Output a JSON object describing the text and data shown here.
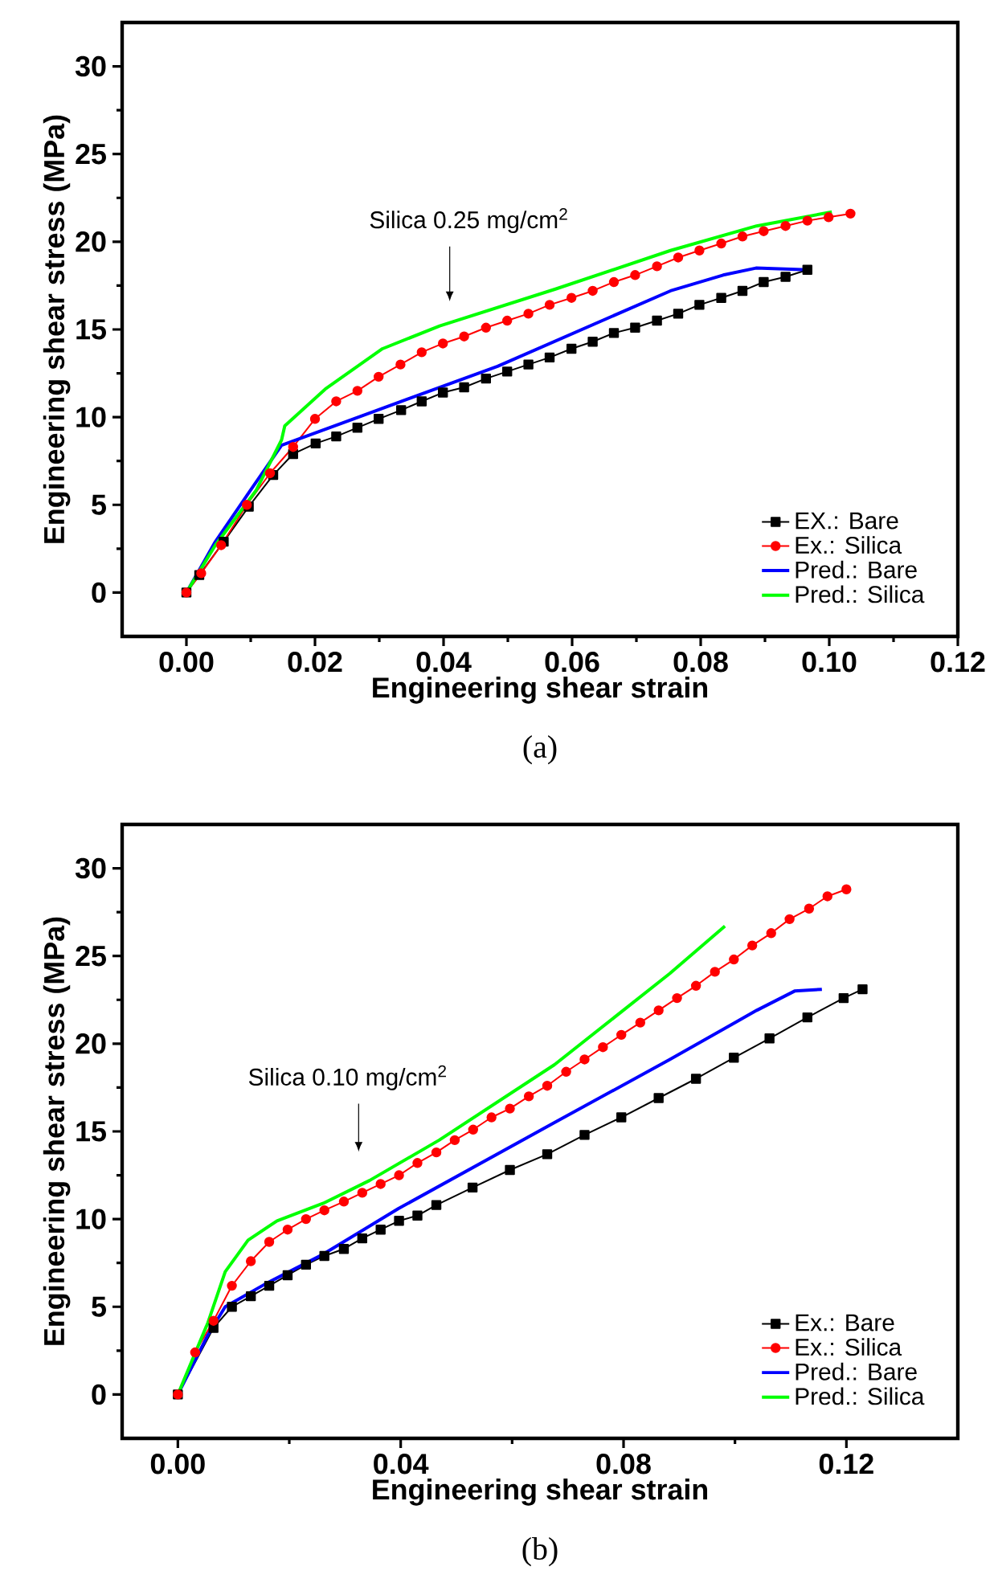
{
  "chart_data": [
    {
      "type": "line",
      "xlabel": "Engineering shear strain",
      "ylabel": "Engineering shear stress (MPa)",
      "xlim": [
        -0.01,
        0.12
      ],
      "ylim": [
        -2.5,
        32.5
      ],
      "xticks": [
        {
          "value": 0,
          "label": "0.00"
        },
        {
          "value": 0.02,
          "label": "0.02"
        },
        {
          "value": 0.04,
          "label": "0.04"
        },
        {
          "value": 0.06,
          "label": "0.06"
        },
        {
          "value": 0.08,
          "label": "0.08"
        },
        {
          "value": 0.1,
          "label": "0.10"
        },
        {
          "value": 0.12,
          "label": "0.12"
        }
      ],
      "yticks": [
        0,
        5,
        10,
        15,
        20,
        25,
        30
      ],
      "legend": "bottom right",
      "annotations": [
        "Silica 0.25 mg/cm$^{2}$",
        "(a)"
      ],
      "series": [
        {
          "name": "EX.: Bare",
          "color": "#000000",
          "marker": "square",
          "x": [
            0,
            0.002,
            0.0058,
            0.0097,
            0.0135,
            0.0166,
            0.0201,
            0.0233,
            0.0266,
            0.0299,
            0.0334,
            0.0366,
            0.0399,
            0.0432,
            0.0466,
            0.0499,
            0.0532,
            0.0565,
            0.0599,
            0.0632,
            0.0665,
            0.0698,
            0.0732,
            0.0765,
            0.0798,
            0.0832,
            0.0865,
            0.0898,
            0.0932,
            0.0966
          ],
          "values": [
            0,
            1.0,
            2.9,
            4.9,
            6.7,
            7.9,
            8.5,
            8.9,
            9.4,
            9.9,
            10.4,
            10.9,
            11.4,
            11.7,
            12.2,
            12.6,
            13.0,
            13.4,
            13.9,
            14.3,
            14.8,
            15.1,
            15.5,
            15.9,
            16.4,
            16.8,
            17.2,
            17.7,
            18.0,
            18.4
          ]
        },
        {
          "name": "Ex.: Silica",
          "color": "#ff0000",
          "marker": "circle",
          "x": [
            0,
            0.0023,
            0.0054,
            0.0094,
            0.013,
            0.0166,
            0.02,
            0.0233,
            0.0266,
            0.0299,
            0.0333,
            0.0366,
            0.0399,
            0.0432,
            0.0466,
            0.0499,
            0.0532,
            0.0565,
            0.0599,
            0.0632,
            0.0665,
            0.0698,
            0.0732,
            0.0765,
            0.0798,
            0.0832,
            0.0865,
            0.0898,
            0.0932,
            0.0966,
            0.0999,
            0.1033
          ],
          "values": [
            0,
            1.1,
            2.7,
            5.0,
            6.8,
            8.3,
            9.9,
            10.9,
            11.5,
            12.3,
            13.0,
            13.7,
            14.2,
            14.6,
            15.1,
            15.5,
            15.9,
            16.4,
            16.8,
            17.2,
            17.7,
            18.1,
            18.6,
            19.1,
            19.5,
            19.9,
            20.3,
            20.6,
            20.9,
            21.2,
            21.4,
            21.6
          ]
        },
        {
          "name": "Pred.: Bare",
          "color": "#0000ff",
          "marker": "none",
          "x": [
            0,
            0.0045,
            0.0099,
            0.0148,
            0.0484,
            0.0753,
            0.0835,
            0.0886,
            0.0966
          ],
          "values": [
            0,
            2.9,
            5.8,
            8.4,
            12.9,
            17.2,
            18.1,
            18.5,
            18.4
          ]
        },
        {
          "name": "Pred.: Silica",
          "color": "#00ff00",
          "marker": "none",
          "x": [
            0,
            0.0045,
            0.0108,
            0.0148,
            0.0153,
            0.0216,
            0.0305,
            0.0394,
            0.0574,
            0.0753,
            0.0887,
            0.1004
          ],
          "values": [
            0,
            2.7,
            5.8,
            8.7,
            9.5,
            11.6,
            13.9,
            15.2,
            17.3,
            19.5,
            20.9,
            21.7
          ]
        }
      ]
    },
    {
      "type": "line",
      "xlabel": "Engineering shear strain",
      "ylabel": "Engineering shear stress (MPa)",
      "xlim": [
        -0.01,
        0.14
      ],
      "ylim": [
        -2.5,
        32.5
      ],
      "xticks": [
        {
          "value": 0,
          "label": "0.00"
        },
        {
          "value": 0.04,
          "label": "0.04"
        },
        {
          "value": 0.08,
          "label": "0.08"
        },
        {
          "value": 0.12,
          "label": "0.12"
        }
      ],
      "yticks": [
        0,
        5,
        10,
        15,
        20,
        25,
        30
      ],
      "legend": "bottom right",
      "annotations": [
        "Silica 0.10 mg/cm$^{2}$",
        "(b)"
      ],
      "series": [
        {
          "name": "Ex.: Bare",
          "color": "#000000",
          "marker": "square",
          "x": [
            0,
            0.0064,
            0.0097,
            0.0131,
            0.0164,
            0.0197,
            0.023,
            0.0263,
            0.0298,
            0.0331,
            0.0364,
            0.0397,
            0.043,
            0.0464,
            0.0529,
            0.0596,
            0.0663,
            0.073,
            0.0796,
            0.0863,
            0.093,
            0.0998,
            0.1062,
            0.113,
            0.1195,
            0.1229
          ],
          "values": [
            0,
            3.8,
            5.0,
            5.6,
            6.2,
            6.8,
            7.4,
            7.9,
            8.3,
            8.9,
            9.4,
            9.9,
            10.2,
            10.8,
            11.8,
            12.8,
            13.7,
            14.8,
            15.8,
            16.9,
            18.0,
            19.2,
            20.3,
            21.5,
            22.6,
            23.1
          ]
        },
        {
          "name": "Ex.: Silica",
          "color": "#ff0000",
          "marker": "circle",
          "x": [
            0,
            0.0031,
            0.0064,
            0.0097,
            0.0131,
            0.0164,
            0.0197,
            0.023,
            0.0263,
            0.0298,
            0.0331,
            0.0364,
            0.0397,
            0.043,
            0.0464,
            0.0497,
            0.053,
            0.0563,
            0.0596,
            0.063,
            0.0663,
            0.0697,
            0.073,
            0.0763,
            0.0796,
            0.083,
            0.0863,
            0.0896,
            0.093,
            0.0964,
            0.0998,
            0.1031,
            0.1065,
            0.1098,
            0.1133,
            0.1166,
            0.12
          ],
          "values": [
            0,
            2.4,
            4.2,
            6.2,
            7.6,
            8.7,
            9.4,
            10.0,
            10.5,
            11.0,
            11.5,
            12.0,
            12.5,
            13.2,
            13.8,
            14.5,
            15.1,
            15.8,
            16.3,
            17.0,
            17.6,
            18.4,
            19.1,
            19.8,
            20.5,
            21.2,
            21.9,
            22.6,
            23.3,
            24.1,
            24.8,
            25.6,
            26.3,
            27.1,
            27.7,
            28.4,
            28.8
          ]
        },
        {
          "name": "Pred.: Bare",
          "color": "#0000ff",
          "marker": "none",
          "x": [
            0,
            0.0054,
            0.0085,
            0.0157,
            0.0261,
            0.0396,
            0.0676,
            0.0883,
            0.1039,
            0.1107,
            0.1156
          ],
          "values": [
            0,
            3.4,
            5.0,
            6.3,
            8.0,
            10.6,
            15.5,
            19.1,
            21.9,
            23.0,
            23.1
          ]
        },
        {
          "name": "Pred.: Silica",
          "color": "#00ff00",
          "marker": "none",
          "x": [
            0,
            0.0054,
            0.0085,
            0.0126,
            0.0178,
            0.0261,
            0.0344,
            0.0469,
            0.0676,
            0.0883,
            0.0982
          ],
          "values": [
            0,
            4.1,
            7.0,
            8.8,
            9.9,
            10.9,
            12.2,
            14.5,
            18.8,
            24.0,
            26.7
          ]
        }
      ]
    }
  ]
}
